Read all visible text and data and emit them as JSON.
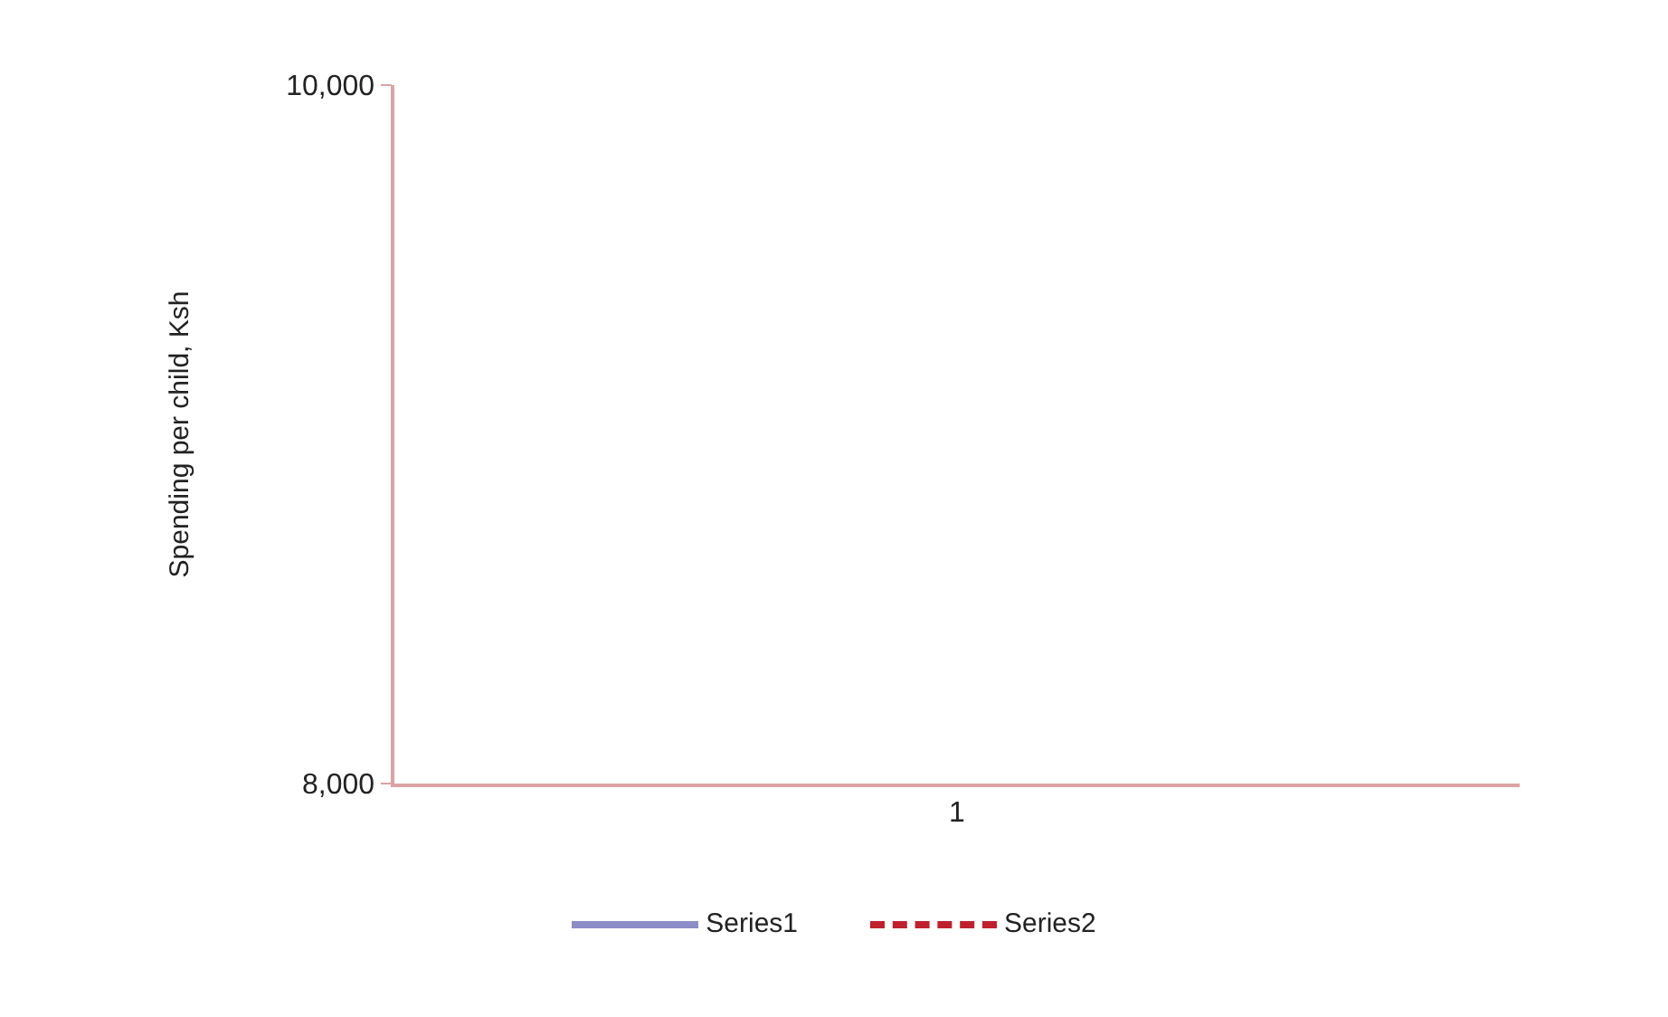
{
  "chart_data": {
    "type": "line",
    "ylabel": "Spending per child, Ksh",
    "categories": [
      "1"
    ],
    "series": [
      {
        "name": "Series1",
        "color": "#8c8cc8",
        "values": [
          null
        ]
      },
      {
        "name": "Series2",
        "color": "#c0202c",
        "values": [
          null
        ],
        "line_style": "dashed"
      }
    ],
    "ylim": [
      8000,
      10000
    ],
    "yticks": [
      {
        "value": 8000,
        "label": "8,000"
      },
      {
        "value": 10000,
        "label": "10,000"
      }
    ],
    "grid": false,
    "legend": "bottom"
  }
}
